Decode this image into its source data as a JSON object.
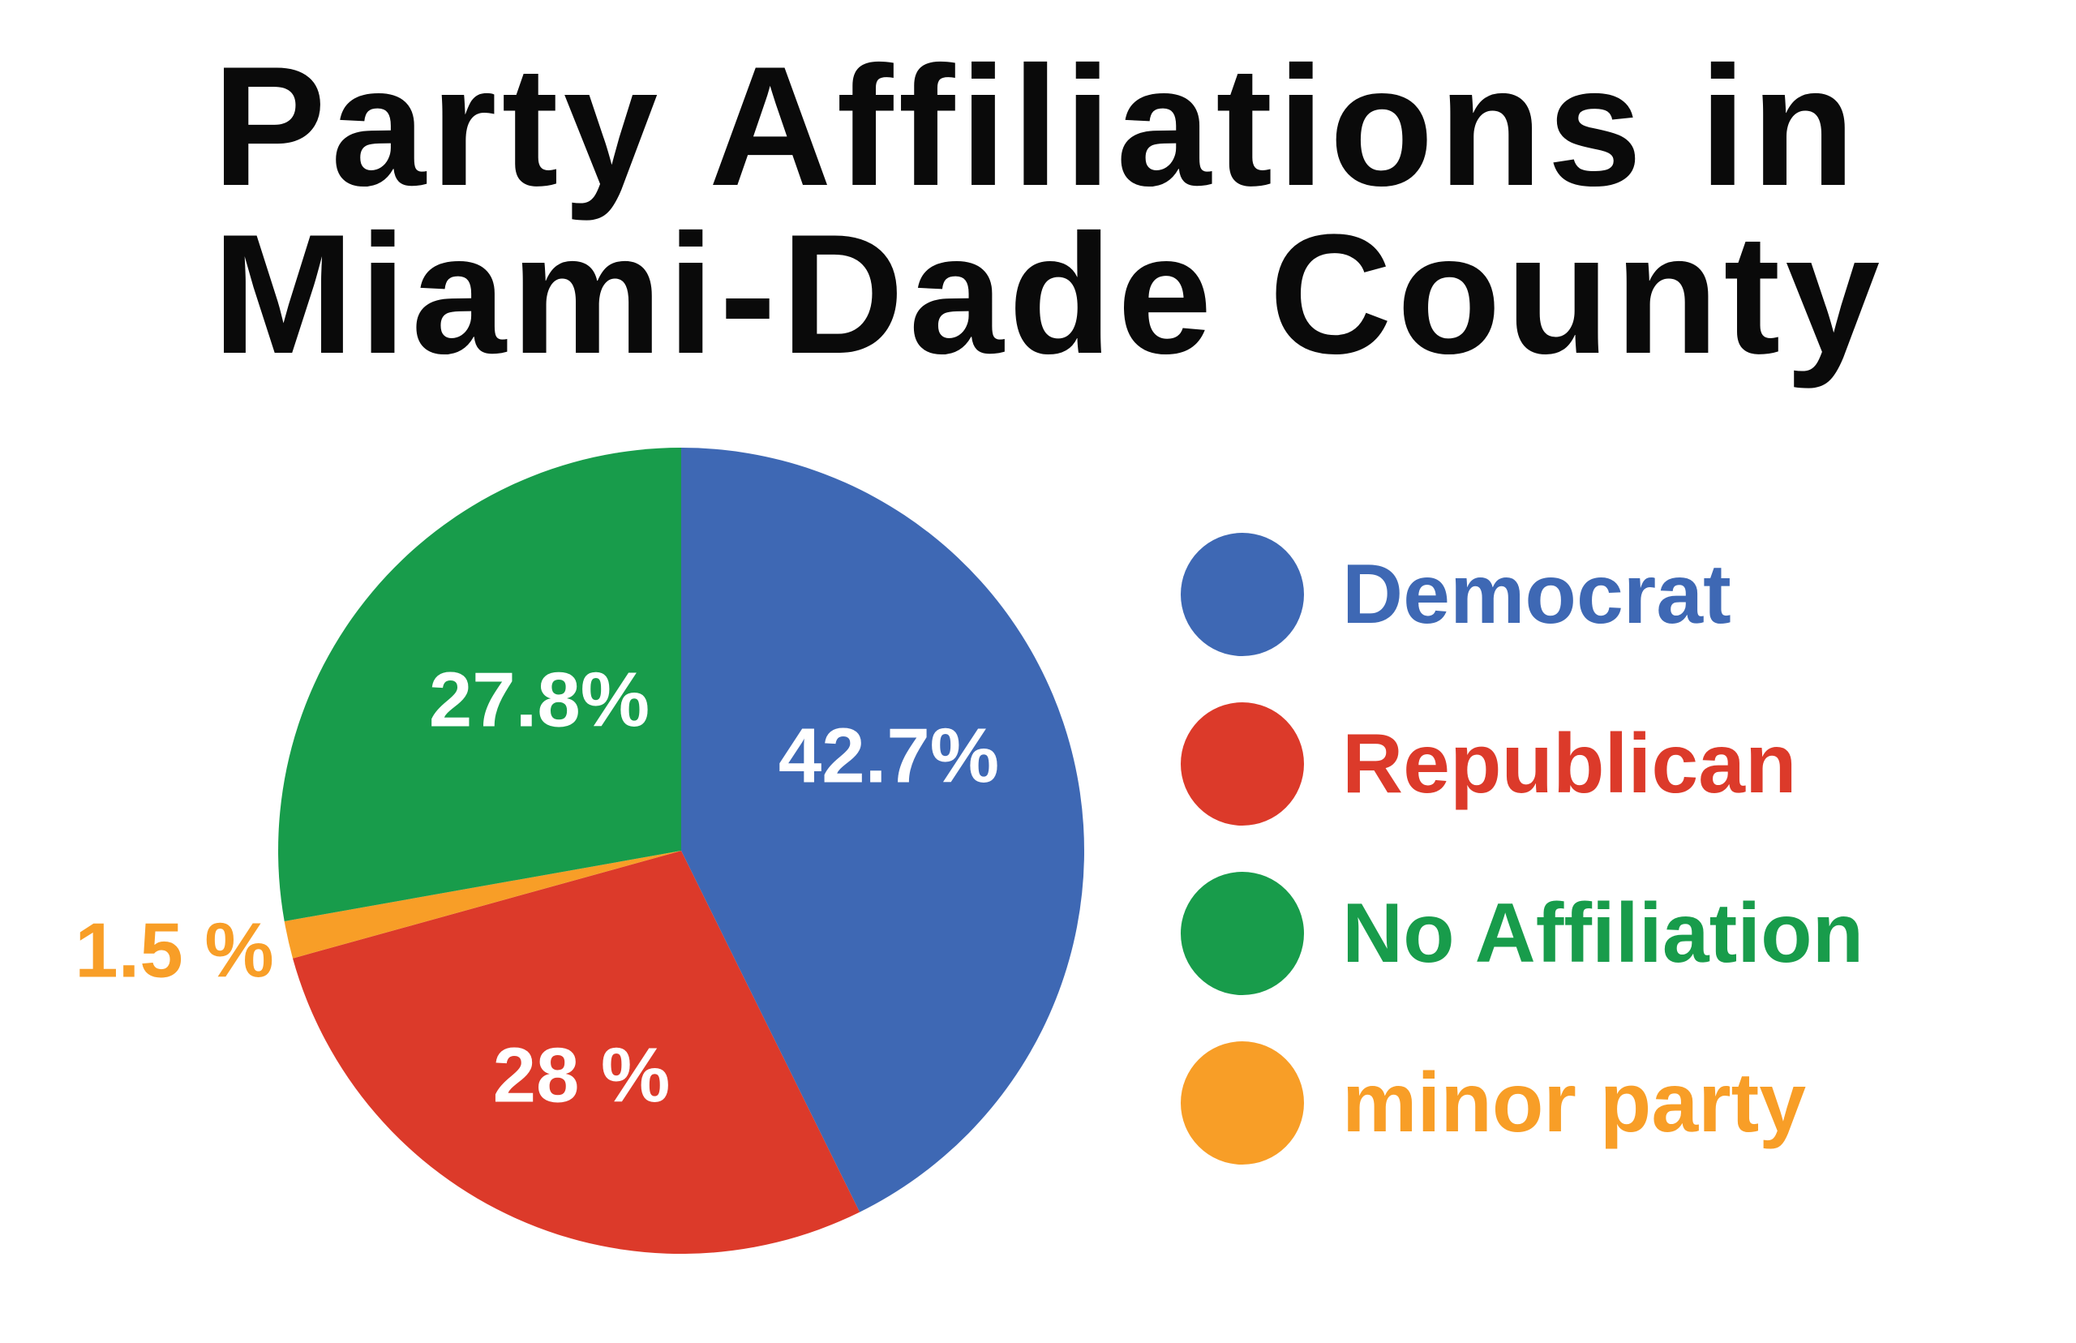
{
  "title": "Party Affiliations in\nMiami-Dade County",
  "chart_data": {
    "type": "pie",
    "title": "Party Affiliations in Miami-Dade County",
    "start_angle_deg": 0,
    "direction": "clockwise",
    "legend_position": "right",
    "background_color": "#ffffff",
    "slices": [
      {
        "label": "Democrat",
        "value": 42.7,
        "display": "42.7%",
        "color": "#3E68B4",
        "label_placement": "inside"
      },
      {
        "label": "Republican",
        "value": 28.0,
        "display": "28 %",
        "color": "#DC3A2A",
        "label_placement": "inside"
      },
      {
        "label": "minor party",
        "value": 1.5,
        "display": "1.5 %",
        "color": "#F89E27",
        "label_placement": "outside"
      },
      {
        "label": "No Affiliation",
        "value": 27.8,
        "display": "27.8%",
        "color": "#189C4B",
        "label_placement": "inside"
      }
    ],
    "legend_order_by_slice_index": [
      0,
      1,
      3,
      2
    ]
  }
}
